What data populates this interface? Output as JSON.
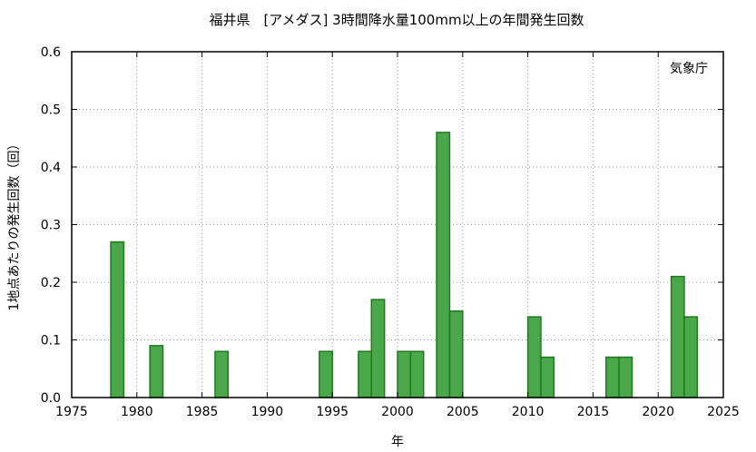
{
  "chart_data": {
    "type": "bar",
    "title": "福井県　[アメダス] 3時間降水量100mm以上の年間発生回数",
    "xlabel": "年",
    "ylabel": "1地点あたりの発生回数（回）",
    "source_note": "気象庁",
    "xlim": [
      1975,
      2025
    ],
    "ylim": [
      0,
      0.6
    ],
    "x_ticks": [
      "1975",
      "1980",
      "1985",
      "1990",
      "1995",
      "2000",
      "2005",
      "2010",
      "2015",
      "2020",
      "2025"
    ],
    "y_ticks": [
      "0.0",
      "0.1",
      "0.2",
      "0.3",
      "0.4",
      "0.5",
      "0.6"
    ],
    "grid": true,
    "bar_color": "#4aa84a",
    "bar_edge_color": "#1f7a1f",
    "x": [
      1979,
      1982,
      1987,
      1995,
      1998,
      1999,
      2001,
      2002,
      2004,
      2005,
      2011,
      2012,
      2017,
      2018,
      2022,
      2023
    ],
    "values": [
      0.27,
      0.09,
      0.08,
      0.08,
      0.08,
      0.17,
      0.08,
      0.08,
      0.46,
      0.15,
      0.14,
      0.07,
      0.07,
      0.07,
      0.21,
      0.14
    ]
  }
}
